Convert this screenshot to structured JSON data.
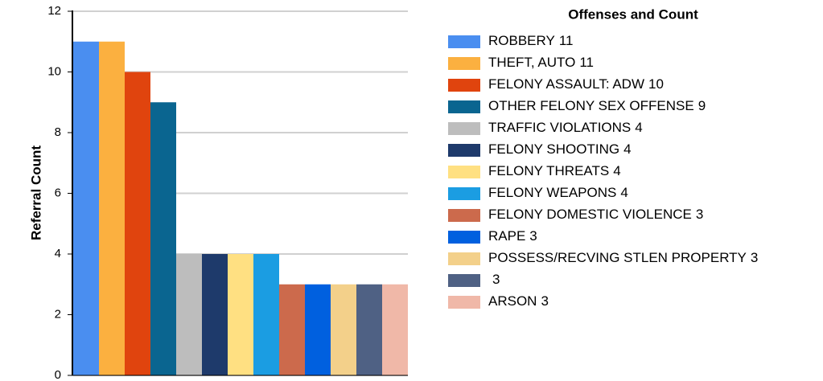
{
  "chart_data": {
    "type": "bar",
    "legend_title": "Offenses and Count",
    "y_label": "Referral Count",
    "categories": [
      "ROBBERY",
      "THEFT, AUTO",
      "FELONY ASSAULT: ADW",
      "OTHER FELONY SEX OFFENSE",
      "TRAFFIC VIOLATIONS",
      "FELONY SHOOTING",
      "FELONY THREATS",
      "FELONY WEAPONS",
      "FELONY DOMESTIC VIOLENCE",
      "RAPE",
      "POSSESS/RECVING STLEN PROPERTY",
      null,
      "ARSON"
    ],
    "values": [
      11,
      11,
      10,
      9,
      4,
      4,
      4,
      4,
      3,
      3,
      3,
      3,
      3
    ],
    "colors": [
      "#4a8ef0",
      "#fbb040",
      "#e0440e",
      "#0a6590",
      "#bdbdbd",
      "#1e3a6b",
      "#ffe082",
      "#1b9de2",
      "#cc6a4c",
      "#0060df",
      "#f3d08a",
      "#4f6184",
      "#f0b8a8"
    ],
    "ylim": [
      0,
      12
    ],
    "yticks": [
      0,
      2,
      4,
      6,
      8,
      10,
      12
    ],
    "grid": true
  }
}
